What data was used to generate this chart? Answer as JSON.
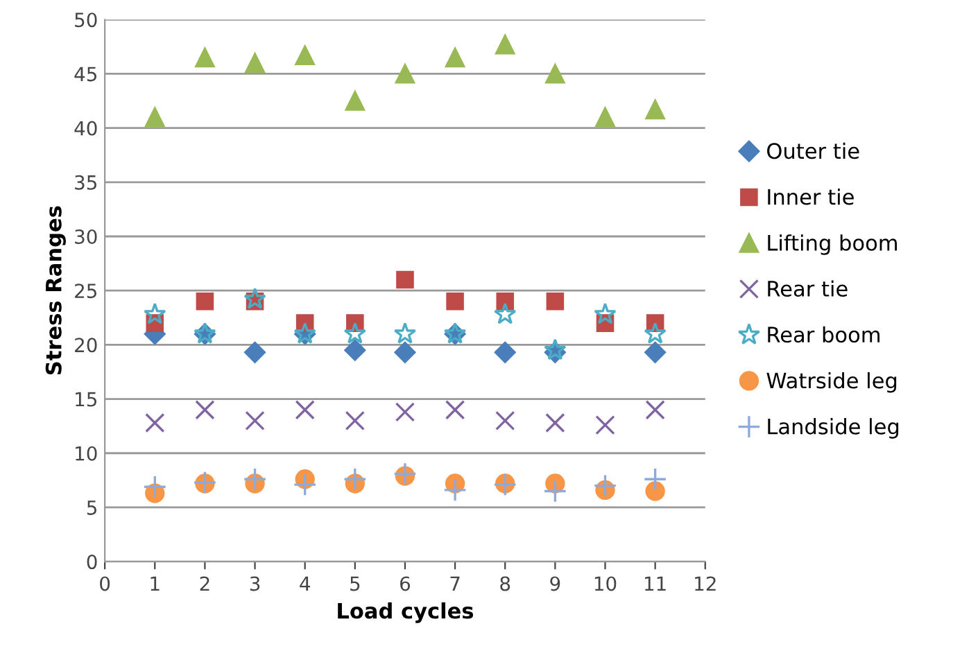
{
  "chart_data": {
    "type": "scatter",
    "xlabel": "Load cycles",
    "ylabel": "Stress Ranges",
    "x": [
      1,
      2,
      3,
      4,
      5,
      6,
      7,
      8,
      9,
      10,
      11
    ],
    "xlim": [
      0,
      12
    ],
    "xticks": [
      0,
      1,
      2,
      3,
      4,
      5,
      6,
      7,
      8,
      9,
      10,
      11,
      12
    ],
    "ylim": [
      0,
      50
    ],
    "yticks": [
      0,
      5,
      10,
      15,
      20,
      25,
      30,
      35,
      40,
      45,
      50
    ],
    "grid": "y",
    "legend": "right",
    "series": [
      {
        "name": "Outer tie",
        "color": "#4a7ebb",
        "marker": "diamond",
        "values": [
          21,
          21,
          19.3,
          21,
          19.5,
          19.3,
          21,
          19.3,
          19.3,
          null,
          19.3
        ]
      },
      {
        "name": "Inner tie",
        "color": "#be4b48",
        "marker": "square",
        "values": [
          22,
          24,
          24,
          22,
          22,
          26,
          24,
          24,
          24,
          22,
          22
        ]
      },
      {
        "name": "Lifting boom",
        "color": "#98b954",
        "marker": "triangle",
        "values": [
          41,
          46.5,
          46,
          46.7,
          42.5,
          45,
          46.5,
          47.7,
          45,
          41,
          41.7
        ]
      },
      {
        "name": "Rear tie",
        "color": "#8064a2",
        "marker": "cross",
        "values": [
          12.8,
          14,
          13,
          14,
          13,
          13.8,
          14,
          13,
          12.8,
          12.6,
          14
        ]
      },
      {
        "name": "Rear boom",
        "color": "#4bacc6",
        "marker": "star",
        "values": [
          22.8,
          21,
          24.2,
          21,
          21,
          21,
          21,
          22.8,
          19.5,
          22.8,
          21
        ]
      },
      {
        "name": "Watrside leg",
        "color": "#f79646",
        "marker": "circle",
        "values": [
          6.3,
          7.2,
          7.2,
          7.6,
          7.2,
          7.9,
          7.2,
          7.2,
          7.2,
          6.6,
          6.5
        ]
      },
      {
        "name": "Landside leg",
        "color": "#8eaadb",
        "marker": "plus",
        "values": [
          6.9,
          7.3,
          7.6,
          7.1,
          7.6,
          8.1,
          6.6,
          7.1,
          6.5,
          7.0,
          7.6
        ]
      }
    ]
  }
}
